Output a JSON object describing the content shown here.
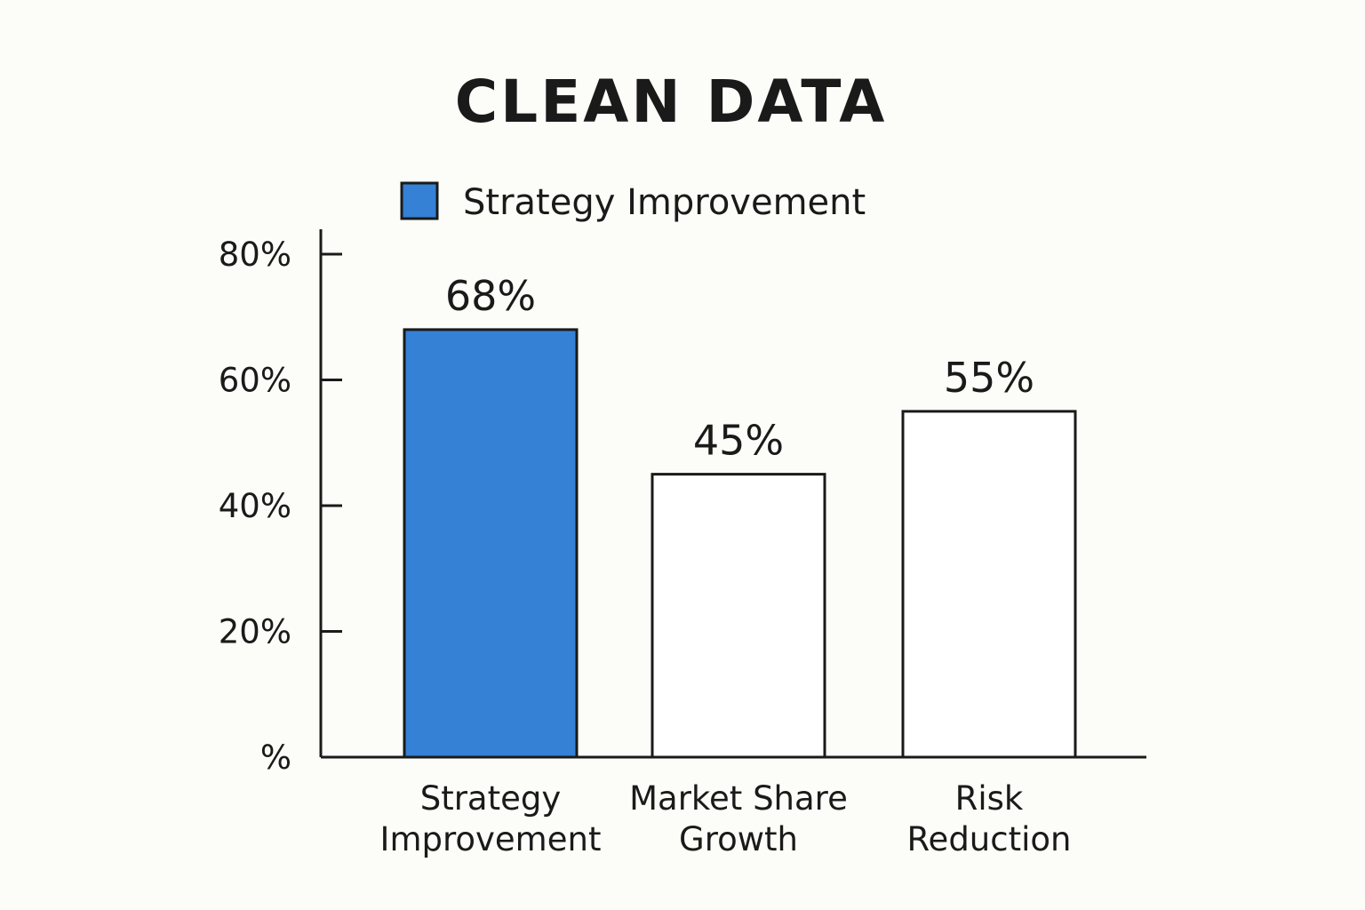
{
  "chart_data": {
    "type": "bar",
    "title": "CLEAN DATA",
    "categories": [
      [
        "Strategy",
        "Improvement"
      ],
      [
        "Market Share",
        "Growth"
      ],
      [
        "Risk",
        "Reduction"
      ]
    ],
    "series": [
      {
        "name": "Strategy Improvement",
        "values": [
          68,
          45,
          55
        ]
      }
    ],
    "data_labels": [
      "68%",
      "45%",
      "55%"
    ],
    "highlighted_index": 0,
    "ylim": [
      0,
      80
    ],
    "y_ticks": [
      0,
      20,
      40,
      60,
      80
    ],
    "y_tick_labels": [
      "%",
      "20%",
      "40%",
      "60%",
      "80%"
    ],
    "xlabel": "",
    "ylabel": "",
    "grid": false,
    "legend": {
      "placement": "top-center",
      "label": "Strategy Improvement"
    },
    "colors": {
      "highlight_fill": "#3481d6",
      "default_fill": "#ffffff",
      "stroke": "#1a1a1a",
      "background": "#fcfcf8"
    }
  }
}
